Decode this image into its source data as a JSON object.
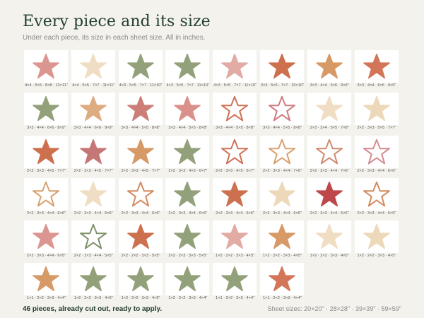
{
  "title": "Every piece and its size",
  "subtitle": "Under each piece, its size in each sheet size. All in inches.",
  "pieces": [
    {
      "label": "4×4 · 5×5 · 8×8 · 12×11\"",
      "color": "#d98e88",
      "style": "solid"
    },
    {
      "label": "4×4 · 5×5 · 7×7 · 11×11\"",
      "color": "#efdcbf",
      "style": "solid"
    },
    {
      "label": "4×3 · 5×5 · 7×7 · 11×10\"",
      "color": "#8a9a70",
      "style": "solid"
    },
    {
      "label": "4×3 · 5×5 · 7×7 · 11×10\"",
      "color": "#8a9a70",
      "style": "solid"
    },
    {
      "label": "4×3 · 5×5 · 7×7 · 11×10\"",
      "color": "#e0a49c",
      "style": "solid"
    },
    {
      "label": "3×3 · 5×5 · 7×7 · 10×10\"",
      "color": "#c9643f",
      "style": "solid"
    },
    {
      "label": "3×3 · 4×4 · 6×6 · 9×9\"",
      "color": "#d4915a",
      "style": "solid"
    },
    {
      "label": "3×3 · 4×4 · 6×6 · 9×9\"",
      "color": "#cf6a4b",
      "style": "solid"
    },
    {
      "label": "3×3 · 4×4 · 6×6 · 8×9\"",
      "color": "#8a9a70",
      "style": "solid"
    },
    {
      "label": "3×3 · 4×4 · 6×6 · 9×9\"",
      "color": "#dba676",
      "style": "solid"
    },
    {
      "label": "3×3 · 4×4 · 5×5 · 8×8\"",
      "color": "#c8746c",
      "style": "solid"
    },
    {
      "label": "3×3 · 4×4 · 5×5 · 8×8\"",
      "color": "#d88882",
      "style": "solid"
    },
    {
      "label": "3×3 · 4×4 · 5×5 · 8×8\"",
      "color": "#cf7156",
      "style": "outline"
    },
    {
      "label": "3×3 · 4×4 · 5×5 · 8×8\"",
      "color": "#cf7a80",
      "style": "outline"
    },
    {
      "label": "2×3 · 3×4 · 5×5 · 7×8\"",
      "color": "#efdcbf",
      "style": "solid"
    },
    {
      "label": "2×2 · 3×3 · 5×5 · 7×7\"",
      "color": "#ecd6b5",
      "style": "solid"
    },
    {
      "label": "2×2 · 3×3 · 4×5 · 7×7\"",
      "color": "#c9643f",
      "style": "solid"
    },
    {
      "label": "2×2 · 3×3 · 4×5 · 7×7\"",
      "color": "#c06c6a",
      "style": "solid"
    },
    {
      "label": "2×2 · 3×3 · 4×5 · 7×7\"",
      "color": "#d4915a",
      "style": "solid"
    },
    {
      "label": "2×2 · 3×3 · 4×5 · 6×7\"",
      "color": "#8a9a70",
      "style": "solid"
    },
    {
      "label": "2×2 · 3×3 · 4×5 · 6×7\"",
      "color": "#cf7156",
      "style": "outline"
    },
    {
      "label": "2×2 · 3×3 · 4×4 · 7×6\"",
      "color": "#d9a06f",
      "style": "outline"
    },
    {
      "label": "2×2 · 3×3 · 4×4 · 7×6\"",
      "color": "#cf8a6e",
      "style": "outline"
    },
    {
      "label": "2×2 · 3×3 · 4×4 · 6×6\"",
      "color": "#d48c90",
      "style": "outline"
    },
    {
      "label": "2×2 · 3×3 · 4×4 · 6×6\"",
      "color": "#d9a06f",
      "style": "outline"
    },
    {
      "label": "2×2 · 3×3 · 4×4 · 6×6\"",
      "color": "#efdcbf",
      "style": "solid"
    },
    {
      "label": "2×2 · 3×3 · 4×4 · 6×6\"",
      "color": "#d48a5e",
      "style": "outline"
    },
    {
      "label": "2×2 · 3×3 · 4×4 · 6×6\"",
      "color": "#8a9a70",
      "style": "solid"
    },
    {
      "label": "2×2 · 3×3 · 4×4 · 6×6\"",
      "color": "#c9643f",
      "style": "solid"
    },
    {
      "label": "2×2 · 3×3 · 4×4 · 6×6\"",
      "color": "#ecd6b5",
      "style": "solid"
    },
    {
      "label": "2×2 · 3×3 · 4×4 · 6×5\"",
      "color": "#b8383a",
      "style": "solid"
    },
    {
      "label": "2×2 · 3×3 · 4×4 · 6×5\"",
      "color": "#d48a5e",
      "style": "outline"
    },
    {
      "label": "2×2 · 3×3 · 4×4 · 6×5\"",
      "color": "#d98e88",
      "style": "solid"
    },
    {
      "label": "2×2 · 2×3 · 4×4 · 5×5\"",
      "color": "#7f9168",
      "style": "outline"
    },
    {
      "label": "2×2 · 2×2 · 3×3 · 5×5\"",
      "color": "#c9643f",
      "style": "solid"
    },
    {
      "label": "2×2 · 2×3 · 3×3 · 5×5\"",
      "color": "#8a9a70",
      "style": "solid"
    },
    {
      "label": "1×2 · 2×2 · 3×3 · 4×5\"",
      "color": "#e0a49c",
      "style": "solid"
    },
    {
      "label": "1×2 · 2×2 · 3×3 · 4×5\"",
      "color": "#d4915a",
      "style": "solid"
    },
    {
      "label": "1×2 · 2×2 · 3×3 · 4×5\"",
      "color": "#efdcbf",
      "style": "solid"
    },
    {
      "label": "1×2 · 2×2 · 3×3 · 4×5\"",
      "color": "#ecd6b5",
      "style": "solid"
    },
    {
      "label": "1×1 · 2×2 · 3×3 · 4×4\"",
      "color": "#d4915a",
      "style": "solid"
    },
    {
      "label": "1×2 · 2×2 · 3×3 · 4×5\"",
      "color": "#8a9a70",
      "style": "solid"
    },
    {
      "label": "1×2 · 2×2 · 3×3 · 4×5\"",
      "color": "#8a9a70",
      "style": "solid"
    },
    {
      "label": "1×2 · 2×2 · 3×3 · 4×4\"",
      "color": "#8a9a70",
      "style": "solid"
    },
    {
      "label": "1×1 · 2×2 · 3×3 · 4×4\"",
      "color": "#8a9a70",
      "style": "solid"
    },
    {
      "label": "1×1 · 2×2 · 3×3 · 4×4\"",
      "color": "#cf6a4b",
      "style": "solid"
    }
  ],
  "footer_left": "46 pieces, already cut out, ready to apply.",
  "footer_right": "Sheet sizes: 20×20\" · 28×28\" · 39×39\" · 59×59\""
}
